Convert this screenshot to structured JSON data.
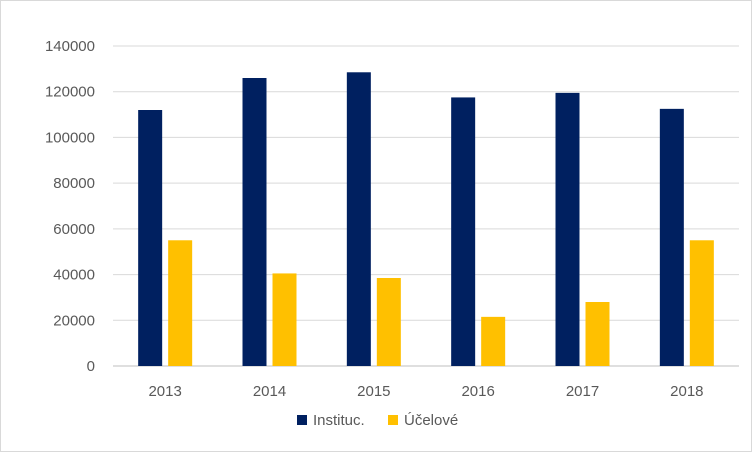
{
  "chart_data": {
    "type": "bar",
    "categories": [
      "2013",
      "2014",
      "2015",
      "2016",
      "2017",
      "2018"
    ],
    "series": [
      {
        "name": "Instituc.",
        "color": "#002060",
        "values": [
          112000,
          126000,
          128500,
          117500,
          119500,
          112500
        ]
      },
      {
        "name": "Účelové",
        "color": "#ffc000",
        "values": [
          55000,
          40500,
          38500,
          21500,
          28000,
          55000
        ]
      }
    ],
    "ylim": [
      0,
      140000
    ],
    "yticks": [
      0,
      20000,
      40000,
      60000,
      80000,
      100000,
      120000,
      140000
    ],
    "grid": true,
    "legend_position": "bottom",
    "title": "",
    "xlabel": "",
    "ylabel": ""
  }
}
